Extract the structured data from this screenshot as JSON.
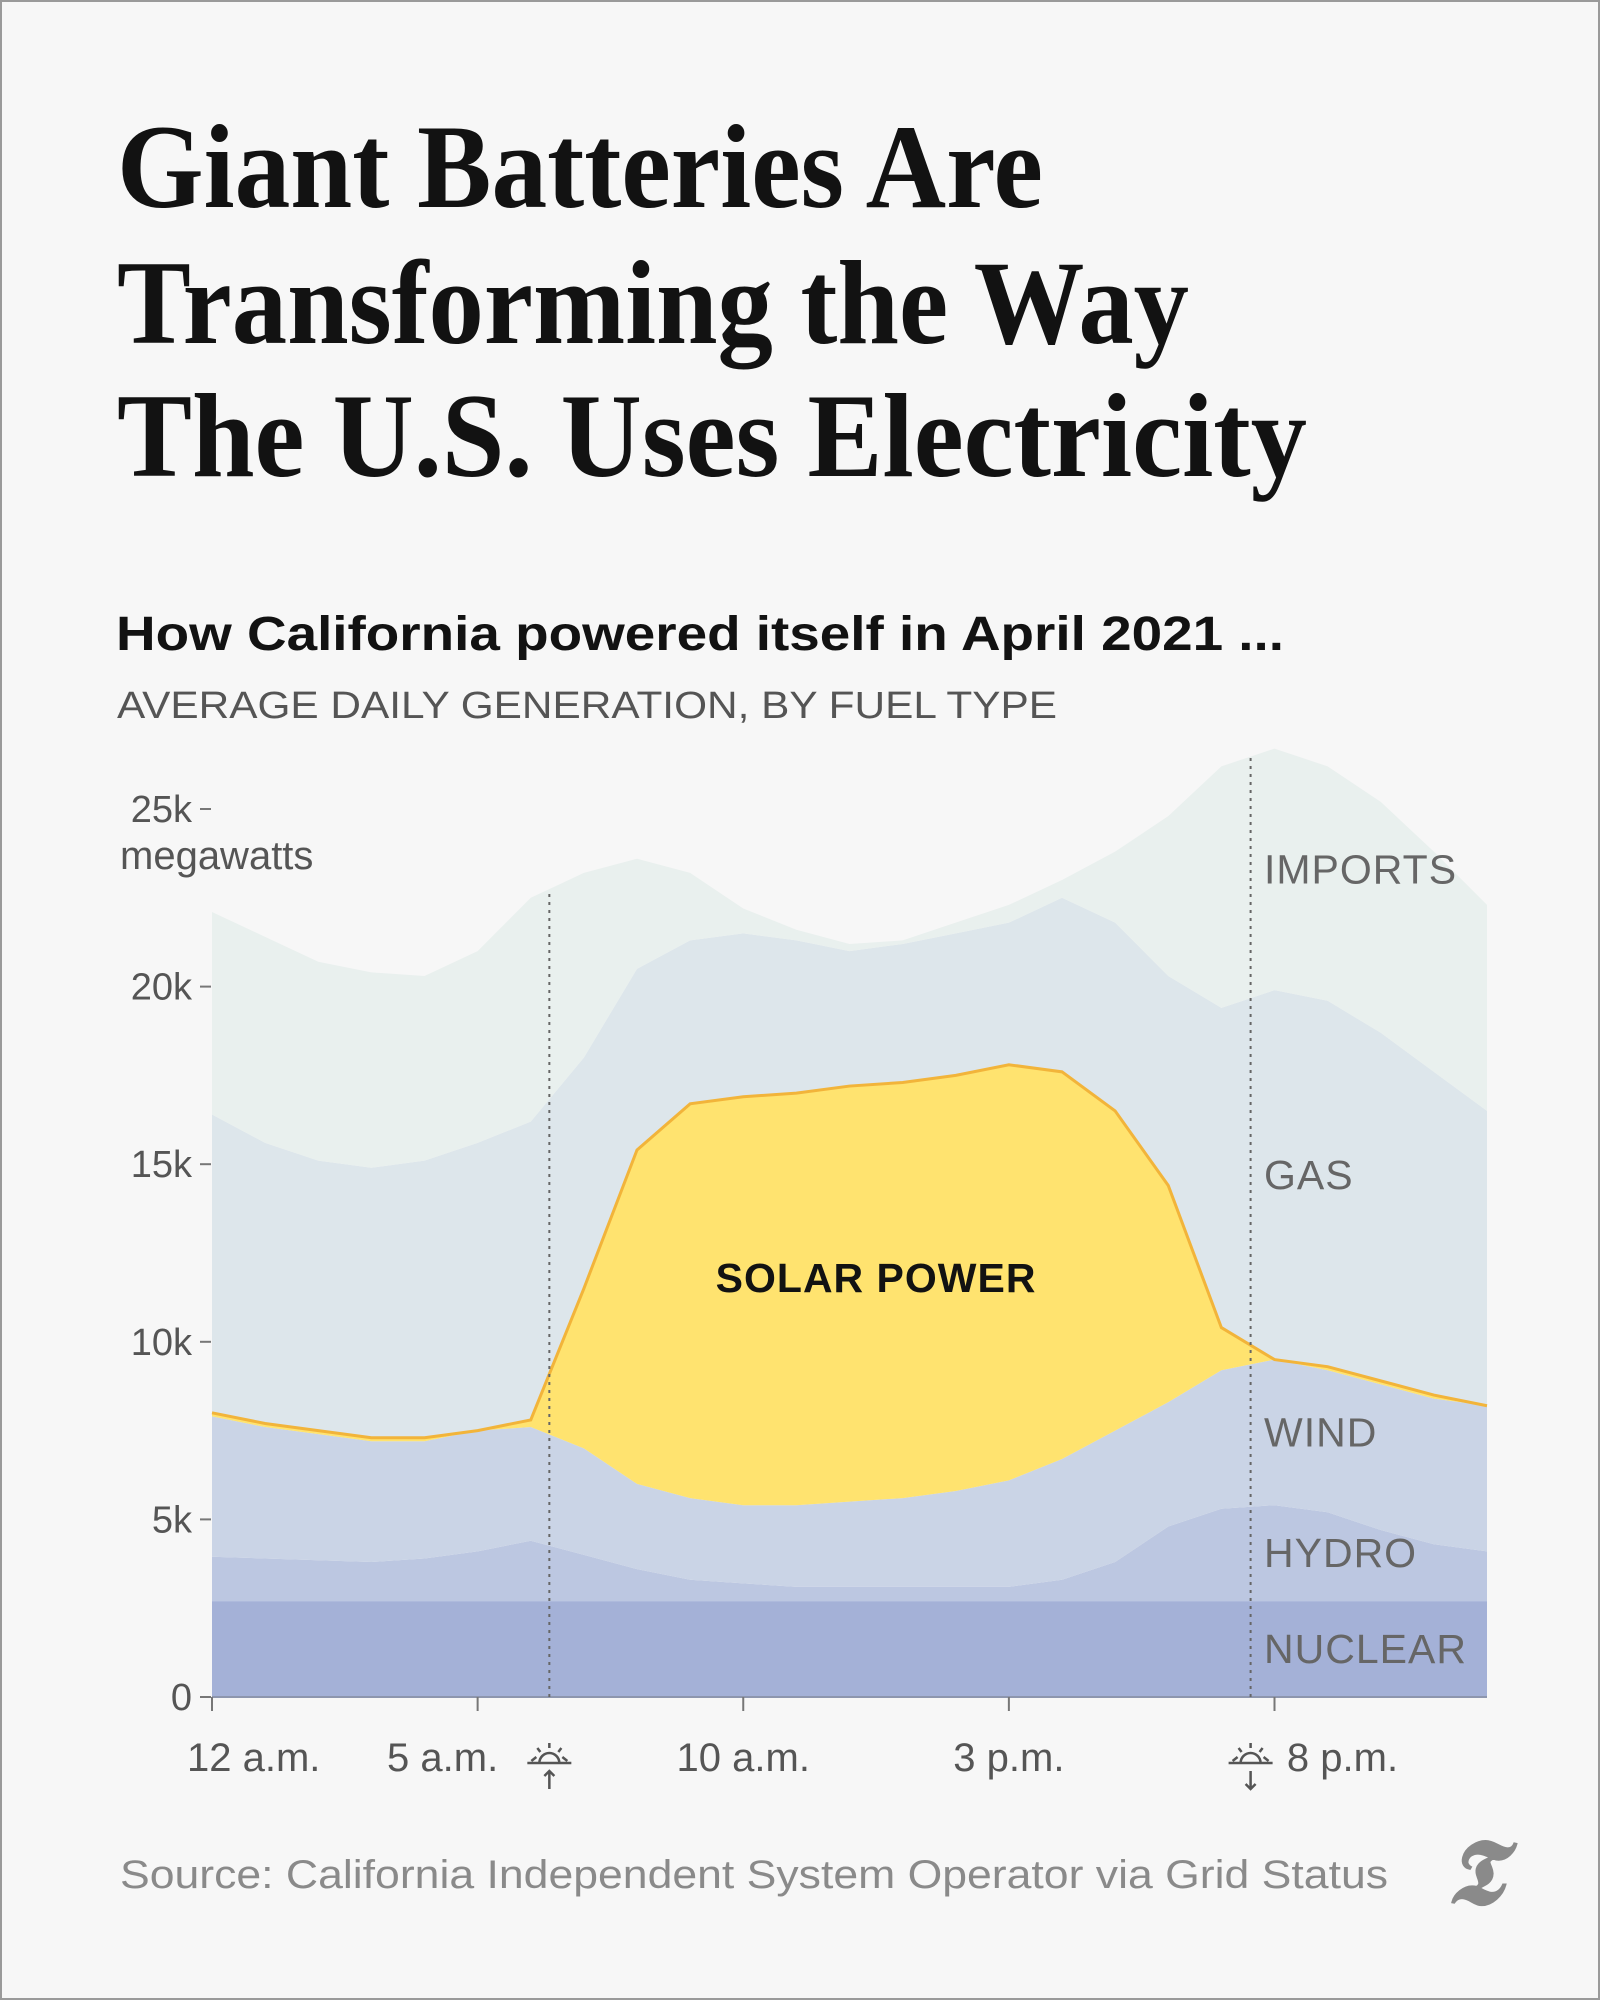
{
  "chart_data": {
    "type": "stacked-area",
    "title": [
      "Giant Batteries Are",
      "Transforming the Way",
      "The U.S. Uses Electricity"
    ],
    "subtitle": "How California powered itself in April 2021 ...",
    "overline": "AVERAGE DAILY GENERATION, BY FUEL TYPE",
    "y_label": "megawatts",
    "source": "Source: California Independent System Operator via Grid Status",
    "x": [
      0,
      1,
      2,
      3,
      4,
      5,
      6,
      7,
      8,
      9,
      10,
      11,
      12,
      13,
      14,
      15,
      16,
      17,
      18,
      19,
      20,
      21,
      22,
      23,
      24
    ],
    "xlim": [
      0,
      24
    ],
    "xticks": [
      {
        "value": 0,
        "label": "12 a.m."
      },
      {
        "value": 5,
        "label": "5 a.m."
      },
      {
        "value": 10,
        "label": "10 a.m."
      },
      {
        "value": 15,
        "label": "3 p.m."
      },
      {
        "value": 20,
        "label": "8 p.m."
      }
    ],
    "ylim": [
      0,
      25000
    ],
    "yticks": [
      {
        "value": 0,
        "label": "0"
      },
      {
        "value": 5000,
        "label": "5k"
      },
      {
        "value": 10000,
        "label": "10k"
      },
      {
        "value": 15000,
        "label": "15k"
      },
      {
        "value": 20000,
        "label": "20k"
      },
      {
        "value": 25000,
        "label": "25k"
      }
    ],
    "vlines": [
      6.35,
      19.55
    ],
    "series": [
      {
        "name": "NUCLEAR",
        "color": "#a4b1d7",
        "values": [
          2700,
          2700,
          2700,
          2700,
          2700,
          2700,
          2700,
          2700,
          2700,
          2700,
          2700,
          2700,
          2700,
          2700,
          2700,
          2700,
          2700,
          2700,
          2700,
          2700,
          2700,
          2700,
          2700,
          2700,
          2700
        ]
      },
      {
        "name": "HYDRO",
        "color": "#bcc7e1",
        "values": [
          1250,
          1200,
          1150,
          1100,
          1200,
          1400,
          1700,
          1300,
          900,
          600,
          500,
          400,
          400,
          400,
          400,
          400,
          600,
          1100,
          2100,
          2600,
          2700,
          2500,
          2000,
          1600,
          1400
        ]
      },
      {
        "name": "WIND",
        "color": "#cad4e6",
        "values": [
          3950,
          3700,
          3550,
          3400,
          3300,
          3400,
          3200,
          3000,
          2400,
          2300,
          2200,
          2300,
          2400,
          2500,
          2700,
          3000,
          3400,
          3700,
          3500,
          3900,
          4100,
          4000,
          4100,
          4100,
          4100
        ]
      },
      {
        "name": "SOLAR POWER",
        "color": "#ffe36f",
        "values": [
          100,
          100,
          100,
          100,
          100,
          0,
          200,
          4500,
          9400,
          11100,
          11500,
          11600,
          11700,
          11700,
          11700,
          11700,
          10900,
          9000,
          6100,
          1200,
          0,
          100,
          100,
          100,
          0
        ]
      },
      {
        "name": "GAS",
        "color": "#dde6eb",
        "values": [
          8400,
          7900,
          7600,
          7600,
          7800,
          8100,
          8400,
          6500,
          5100,
          4600,
          4600,
          4300,
          3800,
          3900,
          4000,
          4000,
          4900,
          5300,
          5900,
          9000,
          10400,
          10300,
          9800,
          9100,
          8300
        ]
      },
      {
        "name": "IMPORTS",
        "color": "#e9f0ee",
        "values": [
          5700,
          5800,
          5600,
          5500,
          5200,
          5400,
          6300,
          5200,
          3100,
          1900,
          700,
          300,
          200,
          100,
          300,
          500,
          500,
          2000,
          4500,
          6800,
          6800,
          6600,
          6500,
          6200,
          5800
        ]
      }
    ]
  }
}
